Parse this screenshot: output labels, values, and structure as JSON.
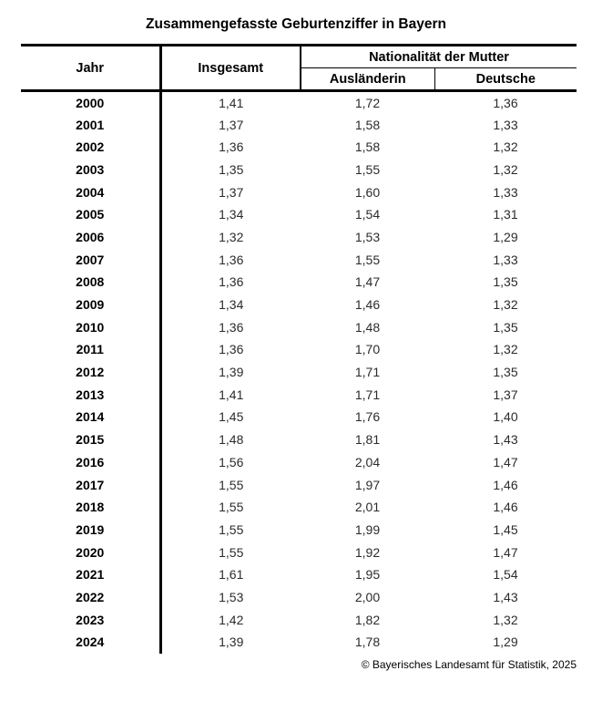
{
  "title": "Zusammengefasste Geburtenziffer in Bayern",
  "chart_data": {
    "type": "table",
    "title": "Zusammengefasste Geburtenziffer in Bayern",
    "columns": [
      "Jahr",
      "Insgesamt",
      "Ausländerin",
      "Deutsche"
    ],
    "column_group": {
      "label": "Nationalität der Mutter",
      "spans": [
        "Ausländerin",
        "Deutsche"
      ]
    },
    "rows": [
      [
        "2000",
        "1,41",
        "1,72",
        "1,36"
      ],
      [
        "2001",
        "1,37",
        "1,58",
        "1,33"
      ],
      [
        "2002",
        "1,36",
        "1,58",
        "1,32"
      ],
      [
        "2003",
        "1,35",
        "1,55",
        "1,32"
      ],
      [
        "2004",
        "1,37",
        "1,60",
        "1,33"
      ],
      [
        "2005",
        "1,34",
        "1,54",
        "1,31"
      ],
      [
        "2006",
        "1,32",
        "1,53",
        "1,29"
      ],
      [
        "2007",
        "1,36",
        "1,55",
        "1,33"
      ],
      [
        "2008",
        "1,36",
        "1,47",
        "1,35"
      ],
      [
        "2009",
        "1,34",
        "1,46",
        "1,32"
      ],
      [
        "2010",
        "1,36",
        "1,48",
        "1,35"
      ],
      [
        "2011",
        "1,36",
        "1,70",
        "1,32"
      ],
      [
        "2012",
        "1,39",
        "1,71",
        "1,35"
      ],
      [
        "2013",
        "1,41",
        "1,71",
        "1,37"
      ],
      [
        "2014",
        "1,45",
        "1,76",
        "1,40"
      ],
      [
        "2015",
        "1,48",
        "1,81",
        "1,43"
      ],
      [
        "2016",
        "1,56",
        "2,04",
        "1,47"
      ],
      [
        "2017",
        "1,55",
        "1,97",
        "1,46"
      ],
      [
        "2018",
        "1,55",
        "2,01",
        "1,46"
      ],
      [
        "2019",
        "1,55",
        "1,99",
        "1,45"
      ],
      [
        "2020",
        "1,55",
        "1,92",
        "1,47"
      ],
      [
        "2021",
        "1,61",
        "1,95",
        "1,54"
      ],
      [
        "2022",
        "1,53",
        "2,00",
        "1,43"
      ],
      [
        "2023",
        "1,42",
        "1,82",
        "1,32"
      ],
      [
        "2024",
        "1,39",
        "1,78",
        "1,29"
      ]
    ]
  },
  "footer": {
    "copyright": "© Bayerisches Landesamt für Statistik, 2025"
  }
}
